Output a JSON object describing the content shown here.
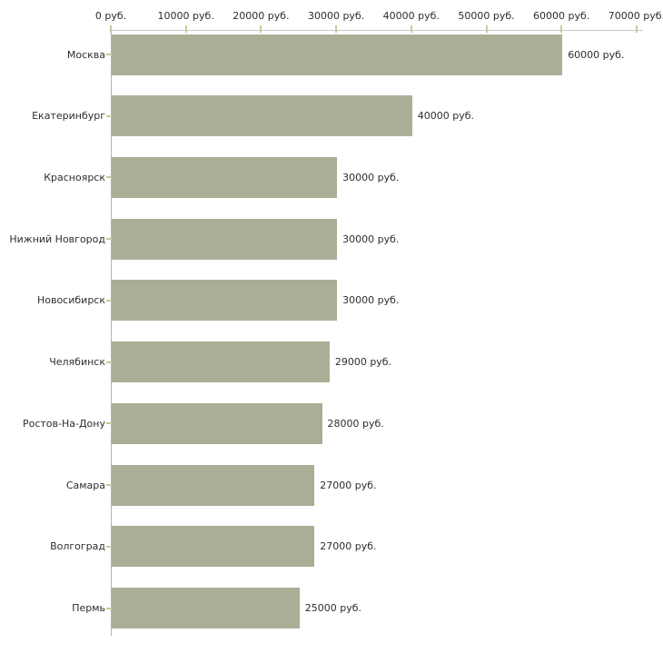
{
  "chart_data": {
    "type": "bar",
    "orientation": "horizontal",
    "title": "",
    "categories": [
      "Москва",
      "Екатеринбург",
      "Красноярск",
      "Нижний Новгород",
      "Новосибирск",
      "Челябинск",
      "Ростов-На-Дону",
      "Самара",
      "Волгоград",
      "Пермь"
    ],
    "values": [
      60000,
      40000,
      30000,
      30000,
      30000,
      29000,
      28000,
      27000,
      27000,
      25000
    ],
    "value_labels": [
      "60000 руб.",
      "40000 руб.",
      "30000 руб.",
      "30000 руб.",
      "30000 руб.",
      "29000 руб.",
      "28000 руб.",
      "27000 руб.",
      "27000 руб.",
      "25000 руб."
    ],
    "x_axis": {
      "position": "top",
      "ticks": [
        0,
        10000,
        20000,
        30000,
        40000,
        50000,
        60000,
        70000
      ],
      "tick_labels": [
        "0 руб.",
        "10000 руб.",
        "20000 руб.",
        "30000 руб.",
        "40000 руб.",
        "50000 руб.",
        "60000 руб.",
        "70000 руб."
      ],
      "xlim": [
        0,
        70000
      ],
      "unit": "руб."
    },
    "ylabel": "",
    "xlabel": "",
    "grid": false,
    "legend": false,
    "colors": {
      "bar": "#a9af96",
      "tick": "#c9c9a0",
      "axis_line_horizontal": "#c8c8c8",
      "axis_line_vertical": "#b3b3b3",
      "text": "#2e2e2e",
      "background": "#ffffff"
    }
  }
}
